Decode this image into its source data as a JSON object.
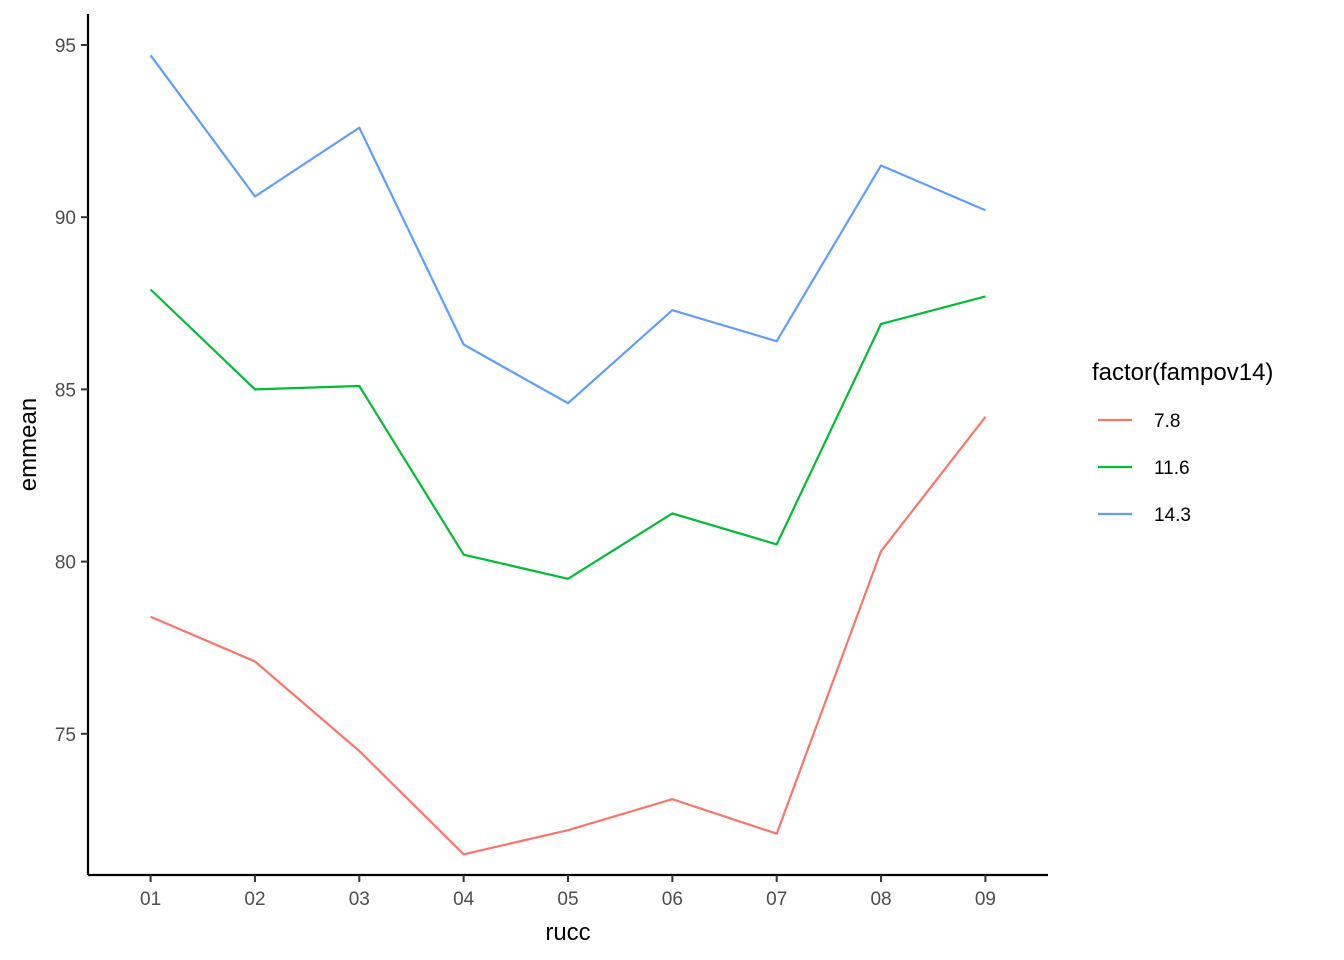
{
  "chart_data": {
    "type": "line",
    "title": "",
    "xlabel": "rucc",
    "ylabel": "emmean",
    "categories": [
      "01",
      "02",
      "03",
      "04",
      "05",
      "06",
      "07",
      "08",
      "09"
    ],
    "y_ticks": [
      75,
      80,
      85,
      90,
      95
    ],
    "ylim": [
      70.9,
      95.9
    ],
    "grid": false,
    "legend": {
      "title": "factor(fampov14)",
      "placement": "right"
    },
    "series": [
      {
        "name": "7.8",
        "color": "#F8766D",
        "values": [
          78.4,
          77.1,
          74.5,
          71.5,
          72.2,
          73.1,
          72.1,
          80.3,
          84.2
        ]
      },
      {
        "name": "11.6",
        "color": "#00BA38",
        "values": [
          87.9,
          85.0,
          85.1,
          80.2,
          79.5,
          81.4,
          80.5,
          86.9,
          87.7
        ]
      },
      {
        "name": "14.3",
        "color": "#619CFF",
        "values": [
          94.7,
          90.6,
          92.6,
          86.3,
          84.6,
          87.3,
          86.4,
          91.5,
          90.2
        ]
      }
    ]
  }
}
